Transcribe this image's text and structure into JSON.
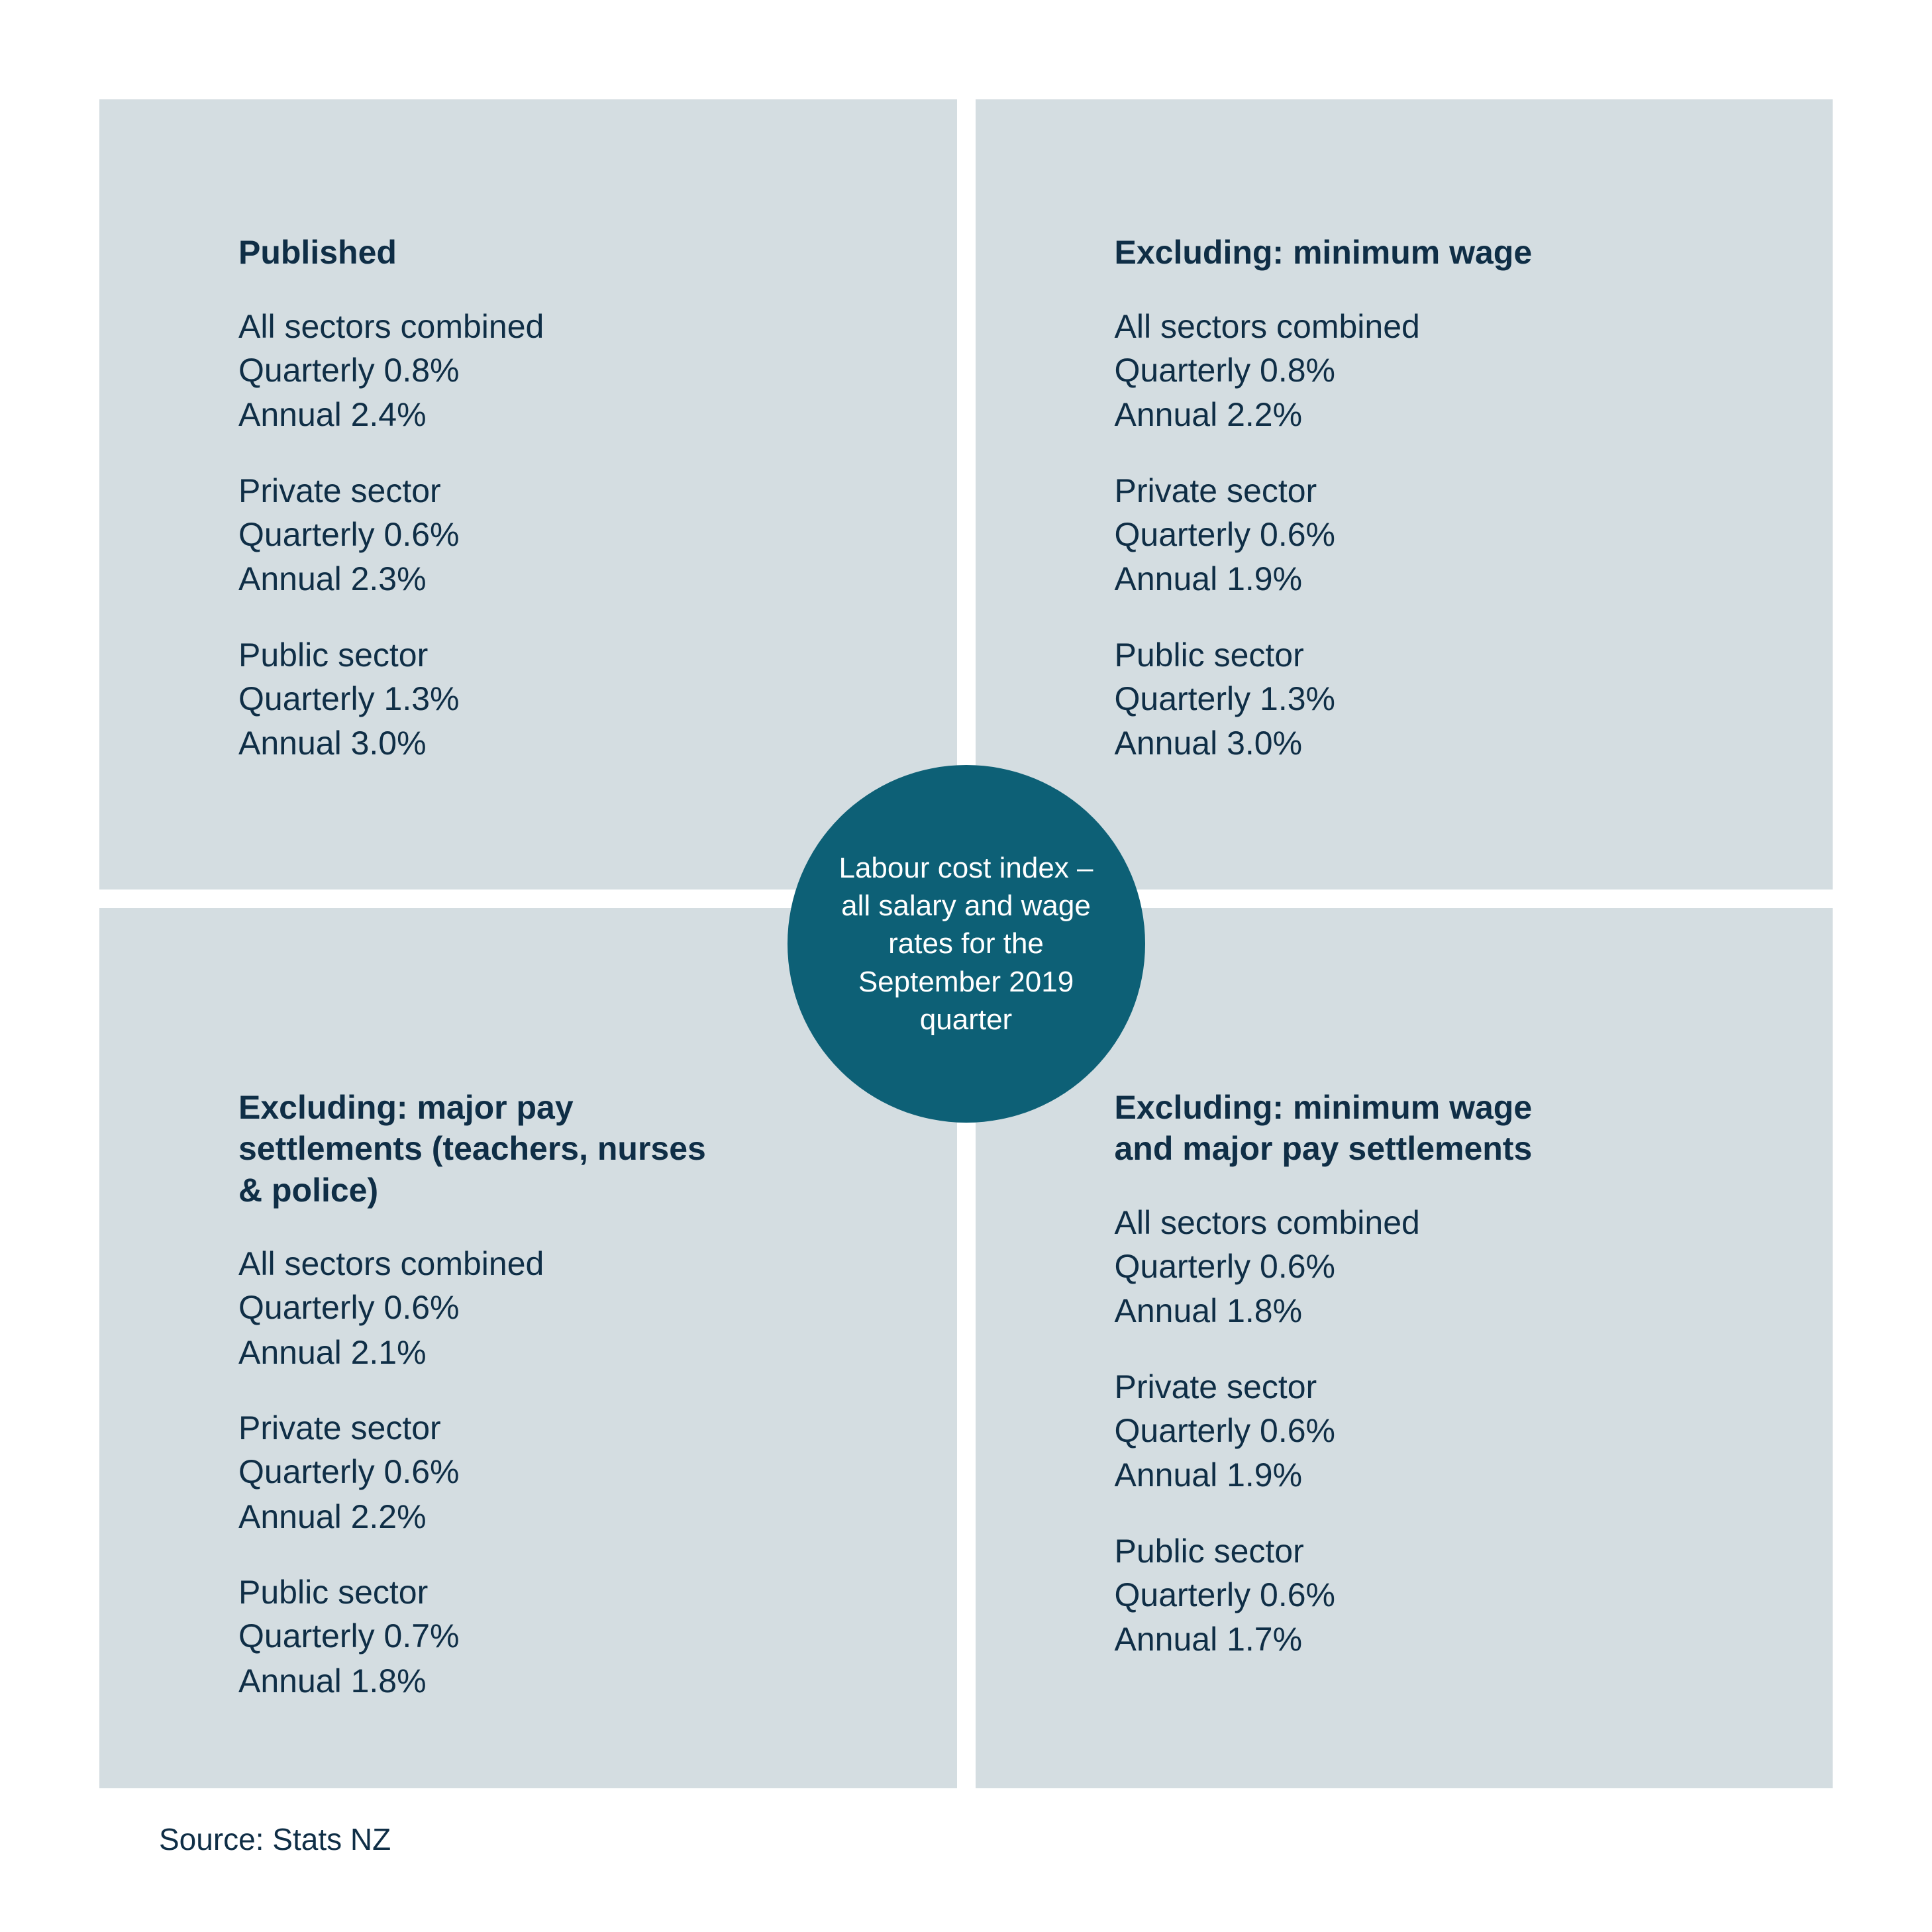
{
  "layout": {
    "panel_bg": "#d4dde1",
    "gap_color": "#ffffff",
    "heading_color": "#0f2e46",
    "body_color": "#0f2e46",
    "badge_bg": "#0d6076",
    "badge_text_color": "#ffffff"
  },
  "center_text": "Labour cost index – all salary and wage rates for the September 2019 quarter",
  "source_label": "Source: Stats NZ",
  "panels": [
    {
      "title": "Published",
      "sections": [
        {
          "name": "All sectors combined",
          "quarterly": "Quarterly 0.8%",
          "annual": "Annual 2.4%"
        },
        {
          "name": "Private sector",
          "quarterly": "Quarterly 0.6%",
          "annual": "Annual 2.3%"
        },
        {
          "name": "Public sector",
          "quarterly": "Quarterly 1.3%",
          "annual": "Annual 3.0%"
        }
      ]
    },
    {
      "title": "Excluding: minimum wage",
      "sections": [
        {
          "name": "All sectors combined",
          "quarterly": "Quarterly 0.8%",
          "annual": "Annual 2.2%"
        },
        {
          "name": "Private sector",
          "quarterly": "Quarterly 0.6%",
          "annual": "Annual 1.9%"
        },
        {
          "name": "Public sector",
          "quarterly": "Quarterly 1.3%",
          "annual": "Annual 3.0%"
        }
      ]
    },
    {
      "title": "Excluding: major pay settlements (teachers, nurses & police)",
      "sections": [
        {
          "name": "All sectors combined",
          "quarterly": "Quarterly 0.6%",
          "annual": "Annual 2.1%"
        },
        {
          "name": "Private sector",
          "quarterly": "Quarterly 0.6%",
          "annual": "Annual 2.2%"
        },
        {
          "name": "Public sector",
          "quarterly": "Quarterly 0.7%",
          "annual": "Annual 1.8%"
        }
      ]
    },
    {
      "title": "Excluding: minimum wage and major pay settlements",
      "sections": [
        {
          "name": "All sectors combined",
          "quarterly": "Quarterly 0.6%",
          "annual": "Annual 1.8%"
        },
        {
          "name": "Private sector",
          "quarterly": "Quarterly 0.6%",
          "annual": "Annual 1.9%"
        },
        {
          "name": "Public sector",
          "quarterly": "Quarterly 0.6%",
          "annual": "Annual 1.7%"
        }
      ]
    }
  ]
}
